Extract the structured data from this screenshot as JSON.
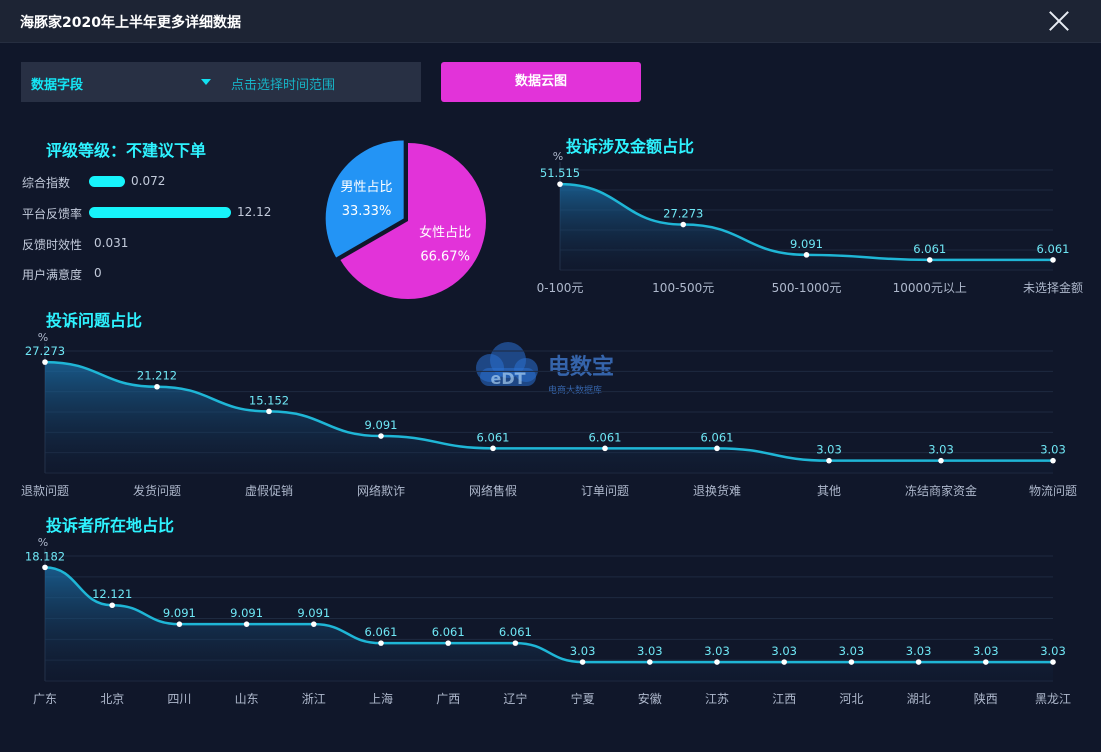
{
  "window": {
    "title": "海豚家2020年上半年更多详细数据"
  },
  "filters": {
    "field_label": "数据字段",
    "time_label": "点击选择时间范围",
    "cloud_button": "数据云图"
  },
  "rating": {
    "title": "评级等级：不建议下单",
    "metrics": [
      {
        "label": "综合指数",
        "value": 0.072
      },
      {
        "label": "平台反馈率",
        "value": 12.12
      },
      {
        "label": "反馈时效性",
        "value": 0.031
      },
      {
        "label": "用户满意度",
        "value": 0
      }
    ]
  },
  "watermark": {
    "text": "电数宝",
    "subtitle": "电商大数据库",
    "logo_text": "eDT"
  },
  "colors": {
    "accent": "#2ef3ff",
    "line": "#1fb6d6",
    "male": "#2394f5",
    "female": "#e233d9",
    "bar": "#17f4fb"
  },
  "charts": {
    "gender": {
      "type": "pie",
      "labels": [
        "男性占比",
        "女性占比"
      ],
      "values": [
        33.33,
        66.67
      ],
      "value_labels": [
        "33.33%",
        "66.67%"
      ]
    },
    "amount": {
      "type": "area",
      "title": "投诉涉及金额占比",
      "ylabel": "%",
      "categories": [
        "0-100元",
        "100-500元",
        "500-1000元",
        "10000元以上",
        "未选择金额"
      ],
      "values": [
        51.515,
        27.273,
        9.091,
        6.061,
        6.061
      ],
      "ylim": [
        0,
        60
      ]
    },
    "problem": {
      "type": "area",
      "title": "投诉问题占比",
      "ylabel": "%",
      "categories": [
        "退款问题",
        "发货问题",
        "虚假促销",
        "网络欺诈",
        "网络售假",
        "订单问题",
        "退换货难",
        "其他",
        "冻结商家资金",
        "物流问题"
      ],
      "values": [
        27.273,
        21.212,
        15.152,
        9.091,
        6.061,
        6.061,
        6.061,
        3.03,
        3.03,
        3.03
      ],
      "ylim": [
        0,
        30
      ]
    },
    "region": {
      "type": "area",
      "title": "投诉者所在地占比",
      "ylabel": "%",
      "categories": [
        "广东",
        "北京",
        "四川",
        "山东",
        "浙江",
        "上海",
        "广西",
        "辽宁",
        "宁夏",
        "安徽",
        "江苏",
        "江西",
        "河北",
        "湖北",
        "陕西",
        "黑龙江"
      ],
      "values": [
        18.182,
        12.121,
        9.091,
        9.091,
        9.091,
        6.061,
        6.061,
        6.061,
        3.03,
        3.03,
        3.03,
        3.03,
        3.03,
        3.03,
        3.03,
        3.03
      ],
      "ylim": [
        0,
        20
      ]
    }
  }
}
